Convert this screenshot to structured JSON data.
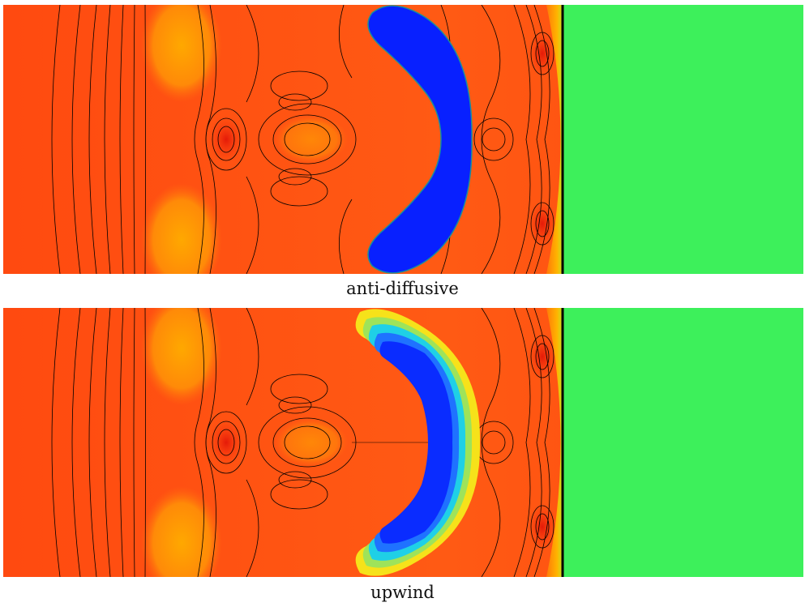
{
  "figure": {
    "panels": [
      {
        "caption": "anti-diffusive",
        "interface": "sharp"
      },
      {
        "caption": "upwind",
        "interface": "smeared"
      }
    ],
    "colors": {
      "ambient_gas": "#ff4d12",
      "high_pressure_lobes": "#ffa600",
      "shocked_region": "#ffb000",
      "unshocked_gas": "#3df05b",
      "bubble": "#0820ff",
      "contour_lines": "#000000"
    }
  }
}
